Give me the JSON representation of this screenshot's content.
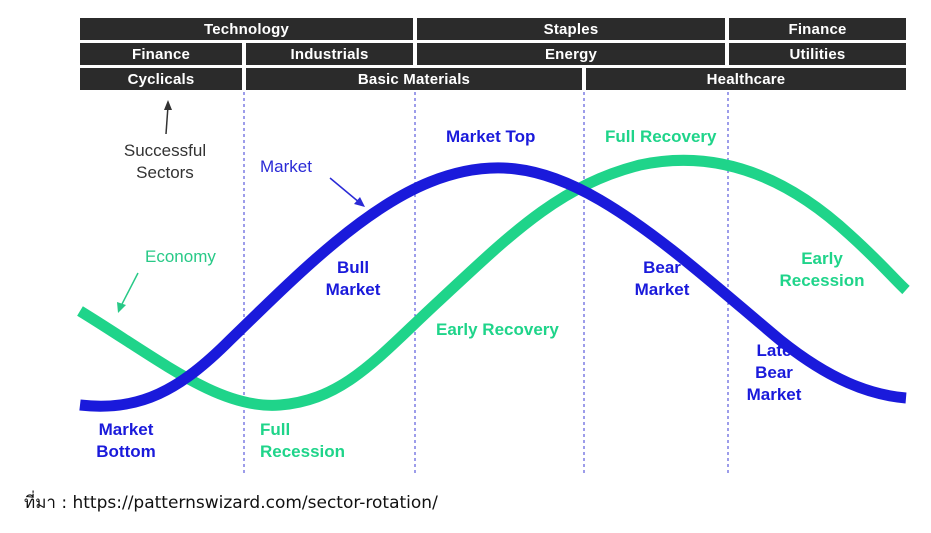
{
  "sector_rows": [
    [
      "Technology",
      "Staples",
      "Finance"
    ],
    [
      "Finance",
      "Industrials",
      "Energy",
      "Utilities"
    ],
    [
      "Cyclicals",
      "Basic Materials",
      "Healthcare"
    ]
  ],
  "annotations": {
    "successful_sectors": [
      "Successful",
      "Sectors"
    ],
    "market": "Market",
    "economy": "Economy"
  },
  "phase_labels": {
    "market_top": "Market Top",
    "full_recovery": "Full Recovery",
    "bull_market": [
      "Bull",
      "Market"
    ],
    "bear_market": [
      "Bear",
      "Market"
    ],
    "early_recession": [
      "Early",
      "Recession"
    ],
    "early_recovery": "Early Recovery",
    "late_bear_market": [
      "Late",
      "Bear",
      "Market"
    ],
    "market_bottom": [
      "Market",
      "Bottom"
    ],
    "full_recession": [
      "Full",
      "Recession"
    ]
  },
  "source": "ที่มา : https://patternswizard.com/sector-rotation/",
  "colors": {
    "market_curve": "#1a1adb",
    "economy_curve": "#1fd48a",
    "bar_bg": "#2b2b2b",
    "divider": "#3b3bd6"
  }
}
